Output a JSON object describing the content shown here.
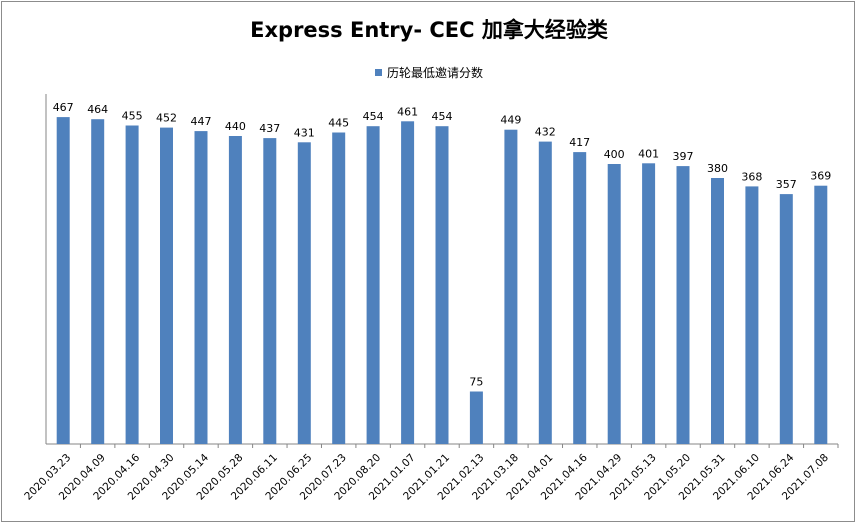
{
  "chart_data": {
    "type": "bar",
    "title": "Express Entry- CEC 加拿大经验类",
    "series": [
      {
        "name": "历轮最低邀请分数",
        "color": "#4f81bd",
        "values": [
          467,
          464,
          455,
          452,
          447,
          440,
          437,
          431,
          445,
          454,
          461,
          454,
          75,
          449,
          432,
          417,
          400,
          401,
          397,
          380,
          368,
          357,
          369
        ]
      }
    ],
    "categories": [
      "2020.03.23",
      "2020.04.09",
      "2020.04.16",
      "2020.04.30",
      "2020.05.14",
      "2020.05.28",
      "2020.06.11",
      "2020.06.25",
      "2020.07.23",
      "2020.08.20",
      "2021.01.07",
      "2021.01.21",
      "2021.02.13",
      "2021.03.18",
      "2021.04.01",
      "2021.04.16",
      "2021.04.29",
      "2021.05.13",
      "2021.05.20",
      "2021.05.31",
      "2021.06.10",
      "2021.06.24",
      "2021.07.08"
    ],
    "xlabel": "",
    "ylabel": "",
    "ylim": [
      0,
      500
    ],
    "data_labels": true,
    "legend_position": "top",
    "grid": false
  }
}
